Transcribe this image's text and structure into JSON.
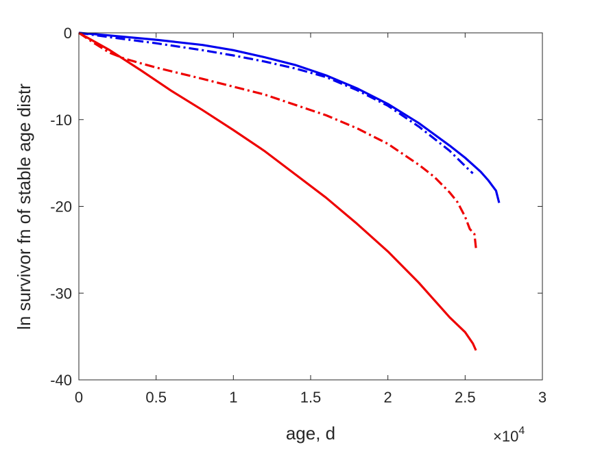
{
  "chart_data": {
    "type": "line",
    "title": "",
    "xlabel": "age, d",
    "ylabel": "ln survivor fn of stable age distr",
    "x_exponent_label": "×10",
    "x_exponent_power": "4",
    "xlim": [
      0,
      30000
    ],
    "ylim": [
      -40,
      0
    ],
    "x_ticks": [
      0,
      5000,
      10000,
      15000,
      20000,
      25000,
      30000
    ],
    "x_tick_labels": [
      "0",
      "0.5",
      "1",
      "1.5",
      "2",
      "2.5",
      "3"
    ],
    "y_ticks": [
      0,
      -10,
      -20,
      -30,
      -40
    ],
    "y_tick_labels": [
      "0",
      "-10",
      "-20",
      "-30",
      "-40"
    ],
    "grid": false,
    "series": [
      {
        "color": "#0000ee",
        "style": "solid",
        "x": [
          0,
          2000,
          5000,
          8000,
          10000,
          12000,
          14000,
          16000,
          18000,
          20000,
          22000,
          24000,
          25000,
          26000,
          26500,
          27000,
          27200
        ],
        "y": [
          0,
          -0.3,
          -0.8,
          -1.4,
          -2.0,
          -2.8,
          -3.7,
          -4.9,
          -6.4,
          -8.2,
          -10.4,
          -13.0,
          -14.4,
          -16.0,
          -17.0,
          -18.2,
          -19.6
        ]
      },
      {
        "color": "#0000ee",
        "style": "dashdot",
        "x": [
          0,
          2000,
          5000,
          8000,
          10000,
          12000,
          14000,
          16000,
          18000,
          20000,
          22000,
          23000,
          24000,
          24800,
          25200,
          25500
        ],
        "y": [
          0,
          -0.5,
          -1.2,
          -2.0,
          -2.6,
          -3.3,
          -4.1,
          -5.1,
          -6.6,
          -8.4,
          -10.8,
          -12.2,
          -13.6,
          -15.0,
          -15.7,
          -16.2
        ]
      },
      {
        "color": "#ee0000",
        "style": "dashdot",
        "x": [
          0,
          1000,
          2000,
          3000,
          4000,
          5000,
          8000,
          10000,
          12000,
          14000,
          16000,
          18000,
          20000,
          22000,
          23000,
          24000,
          24500,
          25000,
          25300,
          25600,
          25700
        ],
        "y": [
          0,
          -1.2,
          -2.3,
          -3.0,
          -3.5,
          -4.0,
          -5.3,
          -6.2,
          -7.1,
          -8.3,
          -9.5,
          -11.0,
          -12.8,
          -15.2,
          -16.6,
          -18.4,
          -19.5,
          -21.2,
          -22.6,
          -23.2,
          -24.8
        ]
      },
      {
        "color": "#ee0000",
        "style": "solid",
        "x": [
          0,
          2000,
          4000,
          6000,
          8000,
          10000,
          12000,
          14000,
          16000,
          18000,
          20000,
          22000,
          23000,
          24000,
          25000,
          25500,
          25700
        ],
        "y": [
          0,
          -2.0,
          -4.3,
          -6.7,
          -8.9,
          -11.2,
          -13.6,
          -16.3,
          -19.0,
          -22.0,
          -25.2,
          -28.8,
          -30.8,
          -32.8,
          -34.5,
          -35.8,
          -36.6
        ]
      }
    ]
  }
}
